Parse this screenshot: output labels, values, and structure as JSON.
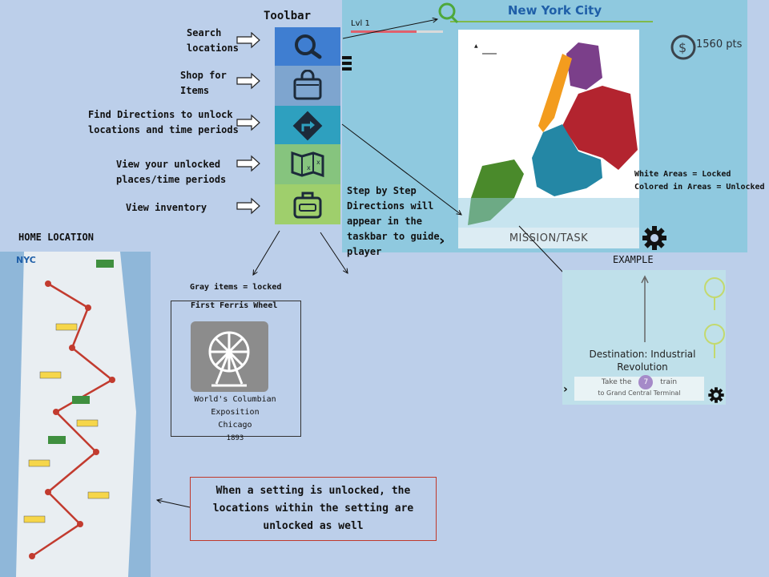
{
  "toolbar": {
    "title": "Toolbar",
    "search_desc_1": "Search",
    "search_desc_2": "locations",
    "shop_desc_1": "Shop for",
    "shop_desc_2": "Items",
    "dir_desc_1": "Find Directions to unlock",
    "dir_desc_2": "locations and time periods",
    "places_desc_1": "View your unlocked",
    "places_desc_2": "places/time periods",
    "inv_desc": "View inventory",
    "icons": [
      "search-icon",
      "shopping-bag-icon",
      "directions-icon",
      "map-icon",
      "luggage-icon"
    ]
  },
  "game": {
    "city": "New York City",
    "level": "Lvl 1",
    "level_progress": 0.71,
    "points": "1560 pts",
    "mission_label": "MISSION/TASK",
    "legend_1": "White Areas = Locked",
    "legend_2": "Colored in  Areas = Unlocked",
    "colors": {
      "manhattan": "#f39c1e",
      "bronx": "#7b3f8a",
      "queens": "#b3242f",
      "brooklyn": "#2487a5",
      "staten": "#4a8a2b",
      "water": "#ffffff"
    }
  },
  "steps_note": {
    "line_1": "Step by Step",
    "line_2": "Directions will",
    "line_3": "appear in the",
    "line_4": "taskbar to guide",
    "line_5": "player"
  },
  "example": {
    "title": "EXAMPLE",
    "destination_1": "Destination: Industrial",
    "destination_2": "Revolution",
    "instr_pre": "Take the",
    "train_no": "7",
    "instr_post": "train",
    "instr_line2": "to Grand Central Terminal"
  },
  "locked_item": {
    "caption": "Gray items = locked",
    "name": "First Ferris Wheel",
    "event": "World's Columbian Exposition",
    "place": "Chicago",
    "year": "1893"
  },
  "home": {
    "title": "HOME LOCATION",
    "map_logo": "NYC"
  },
  "note": {
    "line_1": "When a setting is unlocked, the",
    "line_2": "locations within the setting are",
    "line_3": "unlocked as well"
  }
}
